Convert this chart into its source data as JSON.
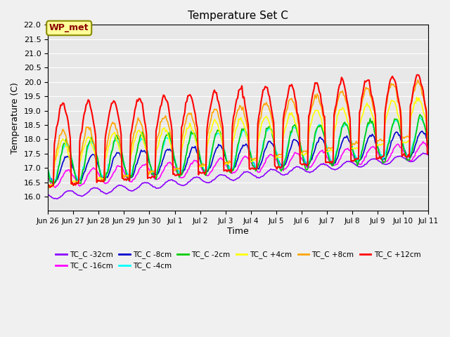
{
  "title": "Temperature Set C",
  "xlabel": "Time",
  "ylabel": "Temperature (C)",
  "ylim": [
    15.5,
    22.0
  ],
  "yticks": [
    16.0,
    16.5,
    17.0,
    17.5,
    18.0,
    18.5,
    19.0,
    19.5,
    20.0,
    20.5,
    21.0,
    21.5,
    22.0
  ],
  "xtick_labels": [
    "Jun 26",
    "Jun 27",
    "Jun 28",
    "Jun 29",
    "Jun 30",
    "Jul 1",
    "Jul 2",
    "Jul 3",
    "Jul 4",
    "Jul 5",
    "Jul 6",
    "Jul 7",
    "Jul 8",
    "Jul 9",
    "Jul 10",
    "Jul 11"
  ],
  "wp_met_label": "WP_met",
  "series": [
    {
      "label": "TC_C -32cm",
      "color": "#8B00FF"
    },
    {
      "label": "TC_C -16cm",
      "color": "#FF00FF"
    },
    {
      "label": "TC_C -8cm",
      "color": "#0000CD"
    },
    {
      "label": "TC_C -4cm",
      "color": "#00FFFF"
    },
    {
      "label": "TC_C -2cm",
      "color": "#00CC00"
    },
    {
      "label": "TC_C +4cm",
      "color": "#FFFF00"
    },
    {
      "label": "TC_C +8cm",
      "color": "#FFA500"
    },
    {
      "label": "TC_C +12cm",
      "color": "#FF0000"
    }
  ],
  "background_color": "#E8E8E8",
  "plot_bg_color": "#E8E8E8",
  "grid_color": "#FFFFFF"
}
